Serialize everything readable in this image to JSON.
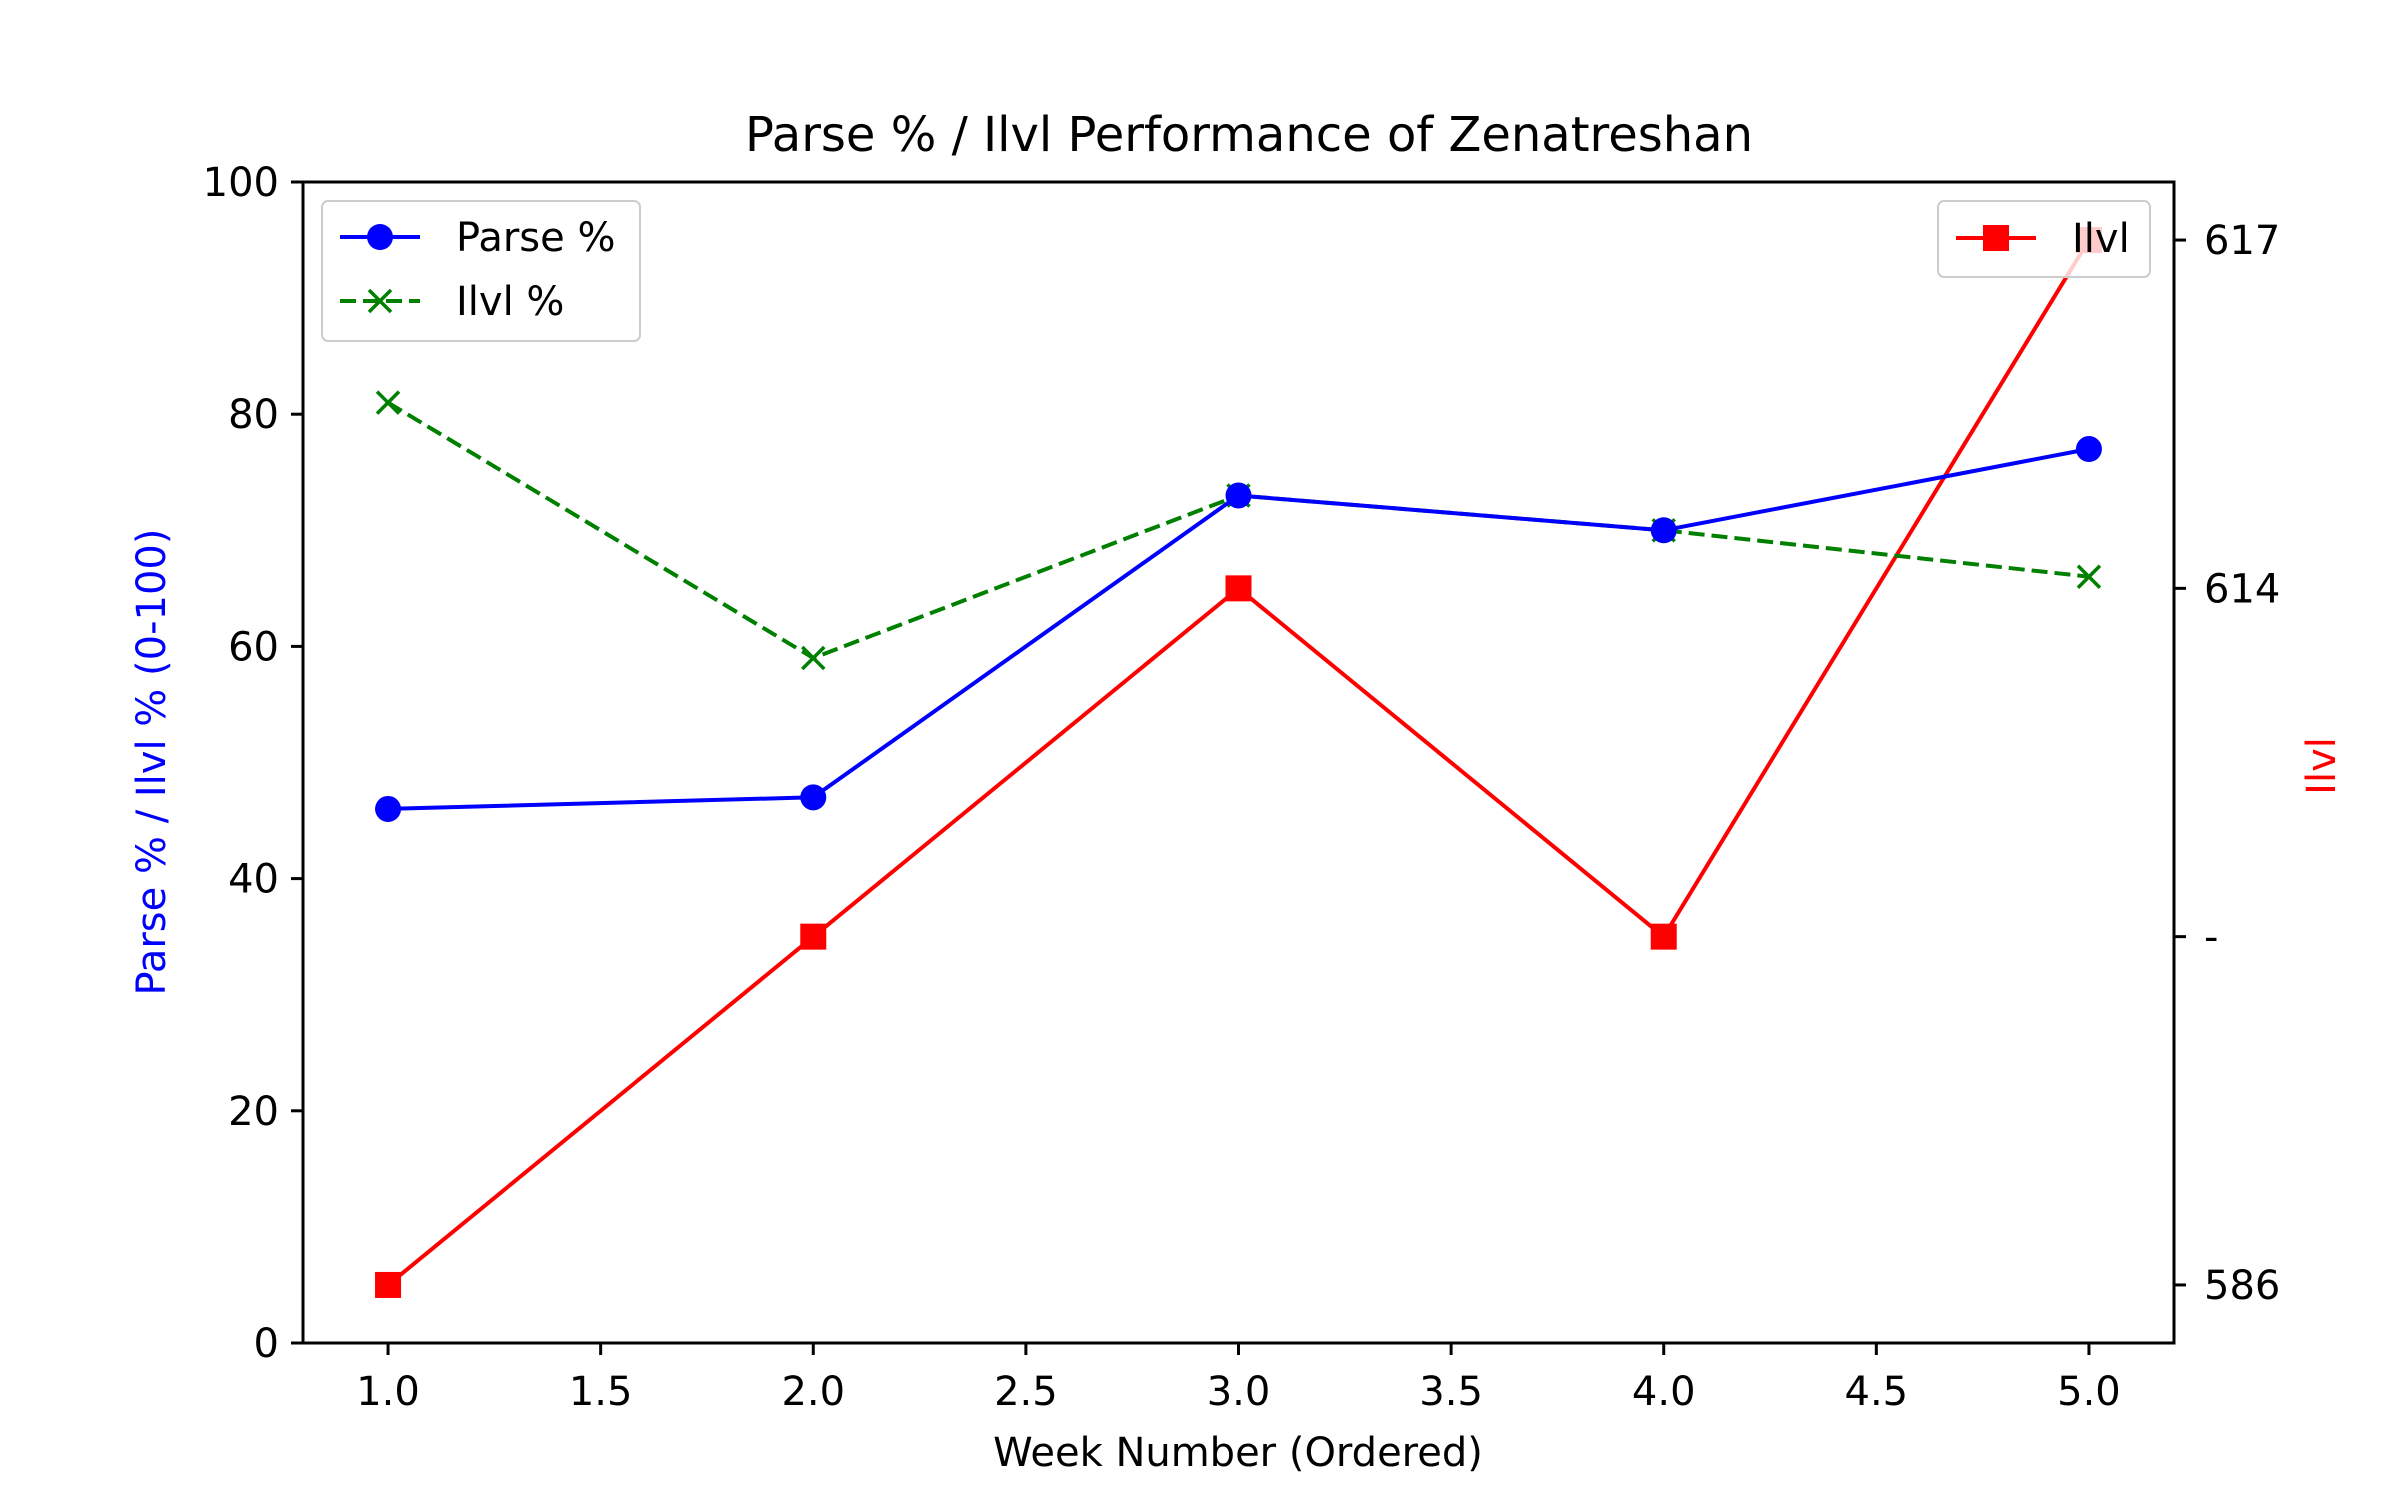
{
  "chart_data": {
    "type": "line",
    "title": "Parse % / Ilvl Performance of Zenatreshan",
    "xlabel": "Week Number (Ordered)",
    "ylabel": "Parse % / Ilvl % (0-100)",
    "ylabel_right": "Ilvl",
    "xlim": [
      0.8,
      5.2
    ],
    "ylim": [
      0,
      100
    ],
    "x_ticks": [
      "1.0",
      "1.5",
      "2.0",
      "2.5",
      "3.0",
      "3.5",
      "4.0",
      "4.5",
      "5.0"
    ],
    "y_ticks": [
      "0",
      "20",
      "40",
      "60",
      "80",
      "100"
    ],
    "right_ticks": [
      "586",
      "-",
      "614",
      "617"
    ],
    "grid": false,
    "x": [
      1,
      2,
      3,
      4,
      5
    ],
    "series": [
      {
        "name": "Parse %",
        "axis": "left",
        "values": [
          46,
          47,
          73,
          70,
          77
        ],
        "color": "#0000ff",
        "marker": "circle",
        "dash": "solid"
      },
      {
        "name": "Ilvl %",
        "axis": "left",
        "values": [
          81,
          59,
          73,
          70,
          66
        ],
        "color": "#008000",
        "marker": "x",
        "dash": "dashed"
      },
      {
        "name": "Ilvl",
        "axis": "right",
        "values": [
          "586",
          "-",
          "614",
          "-",
          "617"
        ],
        "color": "#ff0000",
        "marker": "square",
        "dash": "solid"
      }
    ],
    "legend_left_position": "upper-left",
    "legend_right_position": "upper-right",
    "colors": {
      "left_axis_label": "#0000ff",
      "right_axis_label": "#ff0000"
    }
  }
}
